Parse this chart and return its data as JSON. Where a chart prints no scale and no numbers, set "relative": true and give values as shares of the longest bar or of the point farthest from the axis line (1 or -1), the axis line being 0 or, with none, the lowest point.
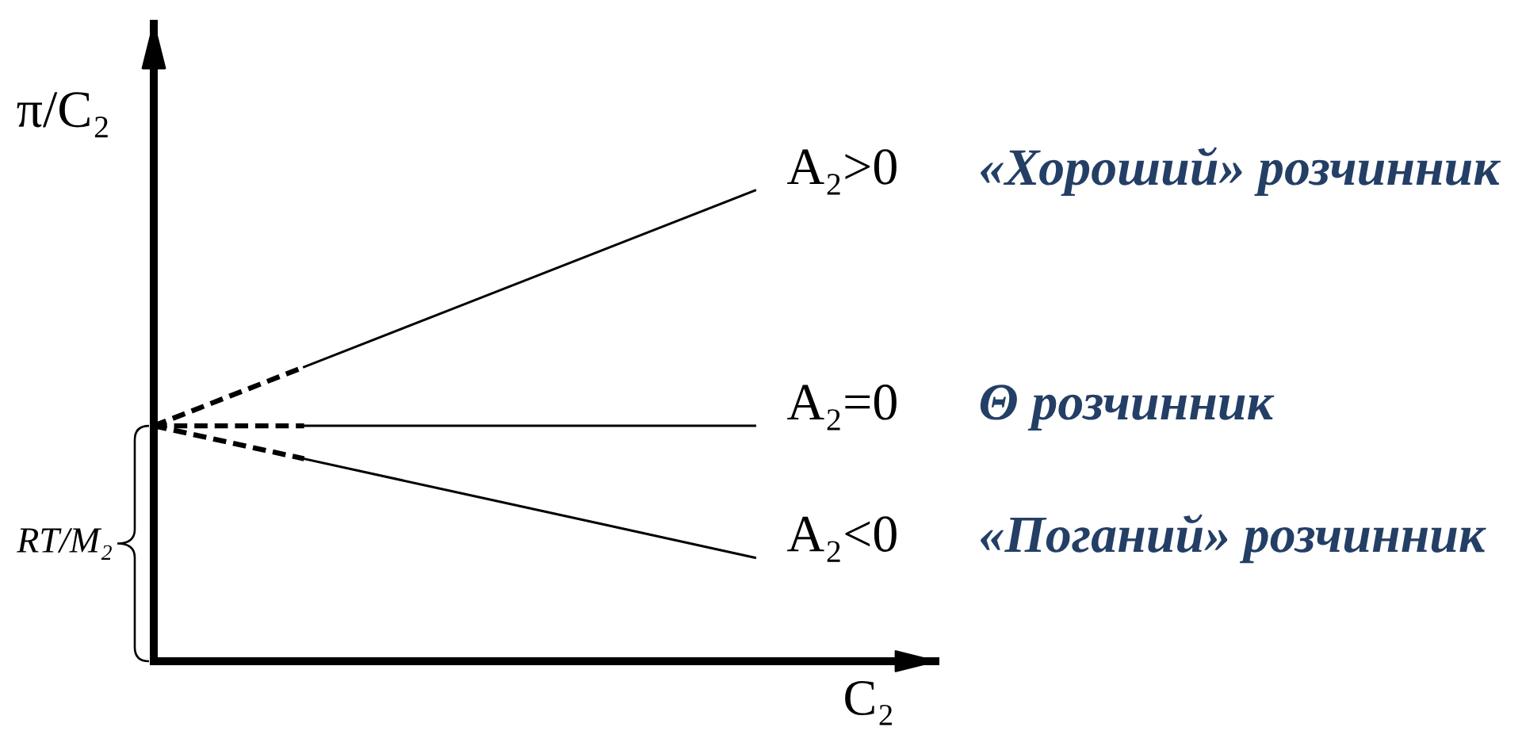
{
  "chart_data": {
    "type": "line",
    "relative": true,
    "ylabel": "π/C₂",
    "xlabel": "C₂",
    "categories": [
      null,
      null,
      null,
      null,
      null
    ],
    "series": [
      {
        "color": "#000000",
        "line_style": "dashed",
        "values": [
          0.5,
          0.625,
          null,
          null,
          null
        ]
      },
      {
        "name": "A₂>0",
        "color": "#000000",
        "line_style": "solid",
        "values": [
          null,
          0.625,
          0.75,
          0.875,
          1.0
        ]
      },
      {
        "color": "#000000",
        "line_style": "dashed",
        "values": [
          0.5,
          0.5,
          null,
          null,
          null
        ]
      },
      {
        "name": "A₂=0",
        "color": "#000000",
        "line_style": "solid",
        "values": [
          null,
          0.5,
          0.5,
          0.5,
          0.5
        ]
      },
      {
        "color": "#000000",
        "line_style": "dashed",
        "values": [
          0.5,
          0.43,
          null,
          null,
          null
        ]
      },
      {
        "name": "A₂<0",
        "color": "#000000",
        "line_style": "solid",
        "values": [
          null,
          0.43,
          0.36,
          0.29,
          0.22
        ]
      }
    ],
    "annotations": [
      "«Хороший» розчинник",
      "Θ розчинник",
      "«Поганий» розчинник",
      "RT/M₂"
    ]
  }
}
